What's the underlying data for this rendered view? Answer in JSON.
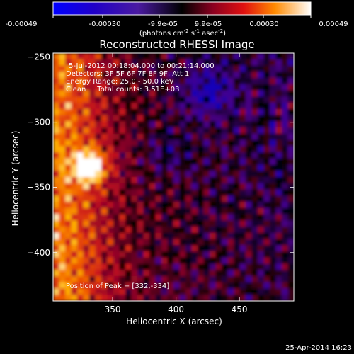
{
  "colorbar": {
    "tick_labels": [
      "-0.00049",
      "-0.00030",
      "-9.9e-05",
      "9.9e-05",
      "0.00030",
      "0.00049"
    ],
    "range": [
      -0.00049,
      0.00049
    ],
    "unit_label_base": "(photons cm",
    "unit_sup1": "-2",
    "unit_mid": " s",
    "unit_sup2": "-1",
    "unit_mid2": " asec",
    "unit_sup3": "-2",
    "unit_end": ")"
  },
  "chart_data": {
    "type": "heatmap",
    "title": "Reconstructed RHESSI Image",
    "xlabel": "Heliocentric X (arcsec)",
    "ylabel": "Heliocentric Y (arcsec)",
    "xlim": [
      303,
      493
    ],
    "ylim": [
      -437,
      -247
    ],
    "x_ticks": [
      350,
      400,
      450
    ],
    "y_ticks": [
      -250,
      -300,
      -350,
      -400
    ],
    "annotations": [
      "5-Jul-2012 00:18:04.000 to 00:21:14.000",
      "Detectors: 3F 5F 6F 7F 8F 9F, Att 1",
      "Energy Range: 25.0 - 50.0 keV",
      "Clean     Total counts: 3.51E+03"
    ],
    "peak_label": "Position of Peak = [332,-334]",
    "peak": {
      "x": 332,
      "y": -334
    },
    "color_scale": [
      "#0000ff",
      "#1b00b0",
      "#4a0088",
      "#000000",
      "#7a0028",
      "#c8141e",
      "#f05a00",
      "#ffb000",
      "#ffffff"
    ]
  },
  "footer": {
    "timestamp": "25-Apr-2014 16:23"
  }
}
